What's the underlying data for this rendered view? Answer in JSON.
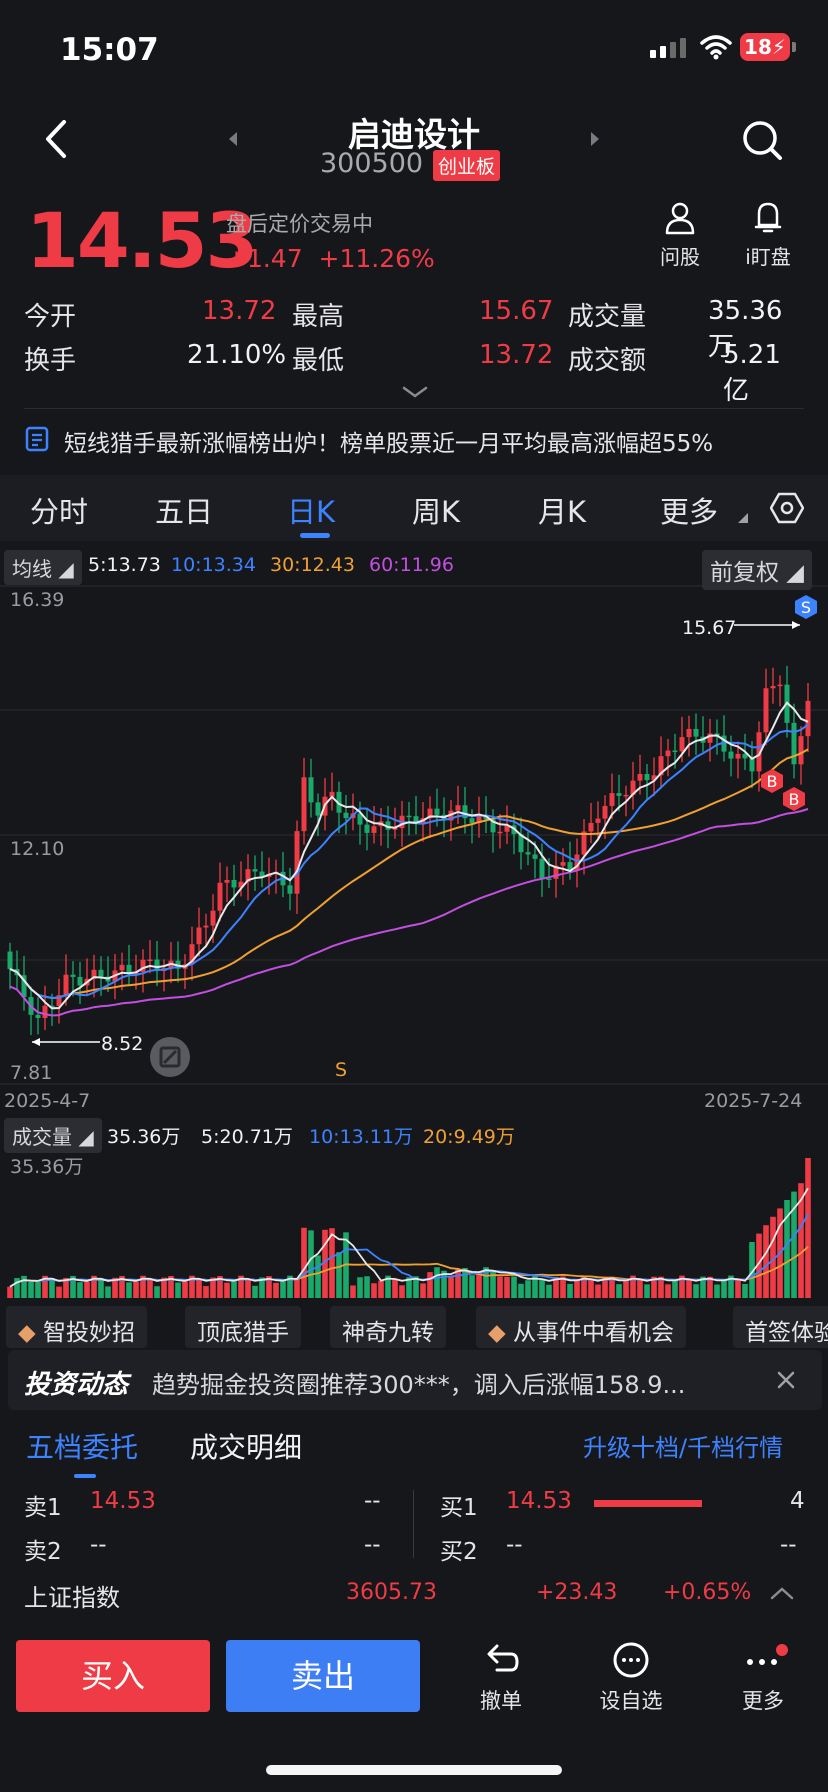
{
  "status": {
    "time": "15:07",
    "battery": "18"
  },
  "header": {
    "title": "启迪设计",
    "code": "300500",
    "board": "创业板"
  },
  "quote": {
    "price": "14.53",
    "state": "盘后定价交易中",
    "change": "+1.47",
    "change_pct": "+11.26%"
  },
  "quick_actions": [
    {
      "label": "问股",
      "icon": "person-icon"
    },
    {
      "label": "i盯盘",
      "icon": "bell-icon"
    }
  ],
  "stats": {
    "open_label": "今开",
    "open": "13.72",
    "high_label": "最高",
    "high": "15.67",
    "volume_label": "成交量",
    "volume": "35.36万",
    "turnover_label": "换手",
    "turnover": "21.10%",
    "low_label": "最低",
    "low": "13.72",
    "amount_label": "成交额",
    "amount": "5.21亿"
  },
  "news": {
    "text": "短线猎手最新涨幅榜出炉！榜单股票近一月平均最高涨幅超55%"
  },
  "tabs": [
    "分时",
    "五日",
    "日K",
    "周K",
    "月K",
    "更多"
  ],
  "active_tab": "日K",
  "ma": {
    "label": "均线",
    "ma5": "5:13.73",
    "ma10": "10:13.34",
    "ma30": "30:12.43",
    "ma60": "60:11.96",
    "adjust": "前复权"
  },
  "chart_data": {
    "type": "candlestick",
    "y_top_label": "16.39",
    "y_mid_label": "12.10",
    "y_bottom_label": "7.81",
    "ylim": [
      7.81,
      16.39
    ],
    "start_date": "2025-4-7",
    "end_date": "2025-7-24",
    "high_marker": "15.67",
    "low_marker": "8.52",
    "signals": [
      "S",
      "B",
      "B",
      "S"
    ],
    "colors": {
      "up": "#ef3b45",
      "down": "#1aa86b",
      "ma5": "#e8e8ea",
      "ma10": "#3d82ff",
      "ma30": "#f0a030",
      "ma60": "#c24fe0"
    }
  },
  "volume": {
    "label": "成交量",
    "v": "35.36万",
    "ma5": "5:20.71万",
    "ma10": "10:13.11万",
    "ma20": "20:9.49万",
    "max_label": "35.36万"
  },
  "chips": [
    "智投妙招",
    "顶底猎手",
    "神奇九转",
    "从事件中看机会",
    "首签体验"
  ],
  "invest": {
    "title": "投资动态",
    "text": "趋势掘金投资圈推荐300***，调入后涨幅158.9..."
  },
  "orderbook_tabs": {
    "active": "五档委托",
    "other": "成交明细",
    "upgrade": "升级十档/千档行情"
  },
  "orderbook": {
    "sell1_label": "卖1",
    "sell1_price": "14.53",
    "sell1_vol": "--",
    "sell2_label": "卖2",
    "sell2_price": "--",
    "sell2_vol": "--",
    "buy1_label": "买1",
    "buy1_price": "14.53",
    "buy1_vol": "4",
    "buy2_label": "买2",
    "buy2_price": "--",
    "buy2_vol": "--"
  },
  "index": {
    "name": "上证指数",
    "value": "3605.73",
    "change": "+23.43",
    "pct": "+0.65%"
  },
  "bottom": {
    "buy": "买入",
    "sell": "卖出",
    "cancel": "撤单",
    "watch": "设自选",
    "more": "更多"
  }
}
